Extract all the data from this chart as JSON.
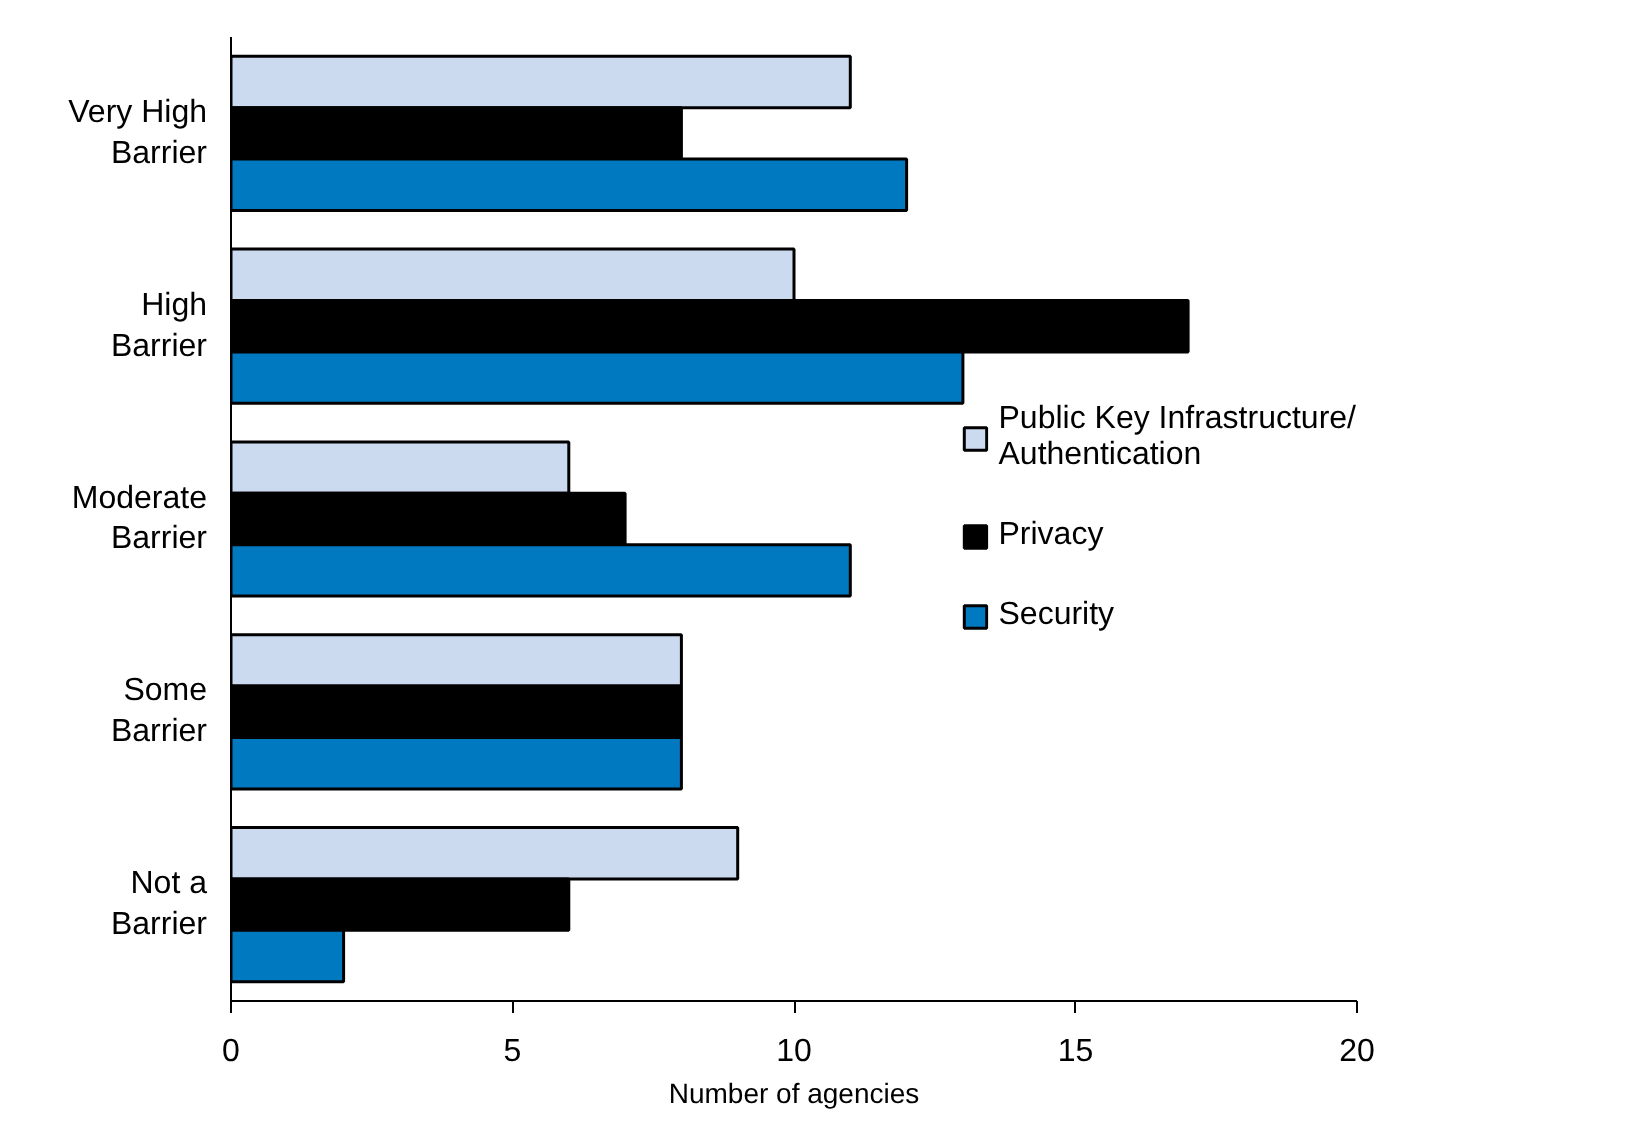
{
  "chart_data": {
    "type": "bar",
    "orientation": "horizontal",
    "xlabel": "Number of agencies",
    "categories": [
      "Very High Barrier",
      "High Barrier",
      "Moderate Barrier",
      "Some Barrier",
      "Not a Barrier"
    ],
    "series": [
      {
        "name": "Public Key Infrastructure/ Authentication",
        "color": "#ccdaf0",
        "values": [
          11,
          10,
          6,
          8,
          9
        ]
      },
      {
        "name": "Privacy",
        "color": "#000000",
        "values": [
          8,
          17,
          7,
          8,
          6
        ]
      },
      {
        "name": "Security",
        "color": "#0079c1",
        "values": [
          12,
          13,
          11,
          8,
          2
        ]
      }
    ],
    "xlim": [
      0,
      20
    ],
    "xticks": [
      0,
      5,
      10,
      15,
      20
    ],
    "grid": false,
    "legend": "right"
  }
}
